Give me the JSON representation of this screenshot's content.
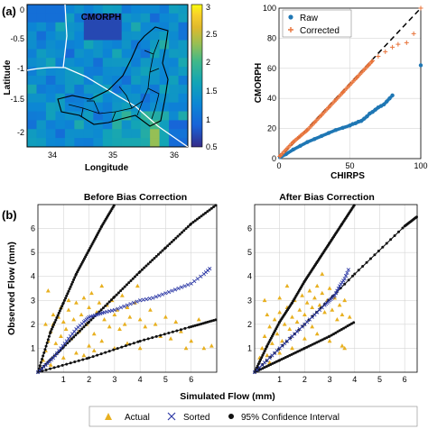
{
  "panel_labels": {
    "a": "(a)",
    "b": "(b)"
  },
  "colors": {
    "raw": "#1f77b4",
    "corrected": "#e8743b",
    "actual": "#e8b020",
    "sorted": "#2e3aa6",
    "ci": "#111111",
    "grid": "#d6d6d6"
  },
  "chart_data": [
    {
      "type": "heatmap",
      "title": "CMORPH",
      "xlabel": "Longitude",
      "ylabel": "Latitude",
      "xlim": [
        33.55,
        36.2
      ],
      "ylim": [
        -2.2,
        0.05
      ],
      "xticks": [
        "34",
        "35",
        "36"
      ],
      "yticks": [
        "0",
        "-0.5",
        "-1",
        "-1.5",
        "-2"
      ],
      "colorbar": {
        "range": [
          0.5,
          3
        ],
        "ticks": [
          "3",
          "2.5",
          "2",
          "1.5",
          "1",
          "0.5"
        ],
        "colormap": "parula"
      },
      "overlays": [
        "basin-boundary",
        "river-network",
        "region-boundary"
      ]
    },
    {
      "type": "scatter",
      "xlabel": "CHIRPS",
      "ylabel": "CMORPH",
      "xlim": [
        0,
        100
      ],
      "ylim": [
        0,
        100
      ],
      "xticks": [
        "0",
        "50",
        "100"
      ],
      "yticks": [
        "0",
        "20",
        "40",
        "60",
        "80",
        "100"
      ],
      "grid": true,
      "legend_position": "top-left",
      "series": [
        {
          "name": "Raw",
          "marker": "dot",
          "x": [
            1,
            5,
            10,
            15,
            20,
            25,
            30,
            35,
            40,
            45,
            50,
            52,
            54,
            56,
            58,
            60,
            62,
            64,
            66,
            68,
            70,
            72,
            74,
            76,
            78,
            80,
            100
          ],
          "y": [
            1,
            3,
            6,
            8.5,
            11,
            13,
            15,
            17,
            19,
            20.5,
            22,
            23,
            23.5,
            24.5,
            25,
            26.5,
            28,
            30,
            31,
            32.5,
            34,
            35,
            36,
            38,
            40,
            42,
            62
          ]
        },
        {
          "name": "Corrected",
          "marker": "plus",
          "x": [
            1,
            5,
            10,
            15,
            20,
            25,
            30,
            35,
            40,
            45,
            50,
            55,
            60,
            63,
            66,
            70,
            75,
            80,
            84,
            90,
            95,
            100
          ],
          "y": [
            2,
            6,
            11,
            15,
            19,
            24,
            29,
            34,
            39,
            44,
            49,
            54,
            59,
            62,
            65,
            68,
            71,
            74,
            76,
            77,
            83,
            100
          ]
        }
      ],
      "reference_line": {
        "style": "dashed",
        "from": [
          0,
          0
        ],
        "to": [
          100,
          100
        ]
      }
    },
    {
      "type": "scatter",
      "title": "Before Bias Correction",
      "xlabel": "",
      "ylabel": "Observed Flow (mm)",
      "xlim": [
        0,
        7
      ],
      "ylim": [
        0,
        7
      ],
      "xticks": [
        "1",
        "2",
        "3",
        "4",
        "5",
        "6"
      ],
      "yticks": [
        "1",
        "2",
        "3",
        "4",
        "5",
        "6"
      ],
      "grid": true,
      "series": [
        {
          "name": "Actual",
          "marker": "triangle",
          "points": [
            [
              0.1,
              0.2
            ],
            [
              0.2,
              0.5
            ],
            [
              0.3,
              0.9
            ],
            [
              0.4,
              1.3
            ],
            [
              0.5,
              1.7
            ],
            [
              0.6,
              2.0
            ],
            [
              0.7,
              1.2
            ],
            [
              0.8,
              2.3
            ],
            [
              0.9,
              1.5
            ],
            [
              1.0,
              2.1
            ],
            [
              1.1,
              1.8
            ],
            [
              1.2,
              2.6
            ],
            [
              1.3,
              1.4
            ],
            [
              1.4,
              2.2
            ],
            [
              1.5,
              2.9
            ],
            [
              1.6,
              1.7
            ],
            [
              1.7,
              2.4
            ],
            [
              1.8,
              3.1
            ],
            [
              1.9,
              2.0
            ],
            [
              2.0,
              2.7
            ],
            [
              2.1,
              3.3
            ],
            [
              2.2,
              1.6
            ],
            [
              2.3,
              2.5
            ],
            [
              2.4,
              2.9
            ],
            [
              2.5,
              3.6
            ],
            [
              2.6,
              2.2
            ],
            [
              2.7,
              2.8
            ],
            [
              2.8,
              1.9
            ],
            [
              2.9,
              3.0
            ],
            [
              3.0,
              2.4
            ],
            [
              3.1,
              2.6
            ],
            [
              3.2,
              1.8
            ],
            [
              3.3,
              3.2
            ],
            [
              3.4,
              2.0
            ],
            [
              3.5,
              2.7
            ],
            [
              3.6,
              2.3
            ],
            [
              3.8,
              2.9
            ],
            [
              4.0,
              2.2
            ],
            [
              4.2,
              1.9
            ],
            [
              4.4,
              2.6
            ],
            [
              4.6,
              2.0
            ],
            [
              4.8,
              1.5
            ],
            [
              5.0,
              2.3
            ],
            [
              5.2,
              1.4
            ],
            [
              5.4,
              2.1
            ],
            [
              5.6,
              1.7
            ],
            [
              5.8,
              1.0
            ],
            [
              6.0,
              1.3
            ],
            [
              6.3,
              2.2
            ],
            [
              6.5,
              1.0
            ],
            [
              6.8,
              1.1
            ],
            [
              1.5,
              0.8
            ],
            [
              2.0,
              1.1
            ],
            [
              2.5,
              1.3
            ],
            [
              3.0,
              1.0
            ],
            [
              3.5,
              1.2
            ],
            [
              4.0,
              1.0
            ],
            [
              1.0,
              0.6
            ],
            [
              0.5,
              0.3
            ],
            [
              2.2,
              0.9
            ],
            [
              1.8,
              0.7
            ],
            [
              0.3,
              2.0
            ],
            [
              0.6,
              2.4
            ],
            [
              0.9,
              2.7
            ],
            [
              1.2,
              3.0
            ],
            [
              0.4,
              3.4
            ],
            [
              3.9,
              3.6
            ]
          ]
        },
        {
          "name": "Sorted",
          "marker": "x",
          "x": [
            0.0,
            0.3,
            0.6,
            0.9,
            1.2,
            1.5,
            1.8,
            2.0,
            2.3,
            2.6,
            3.0,
            3.5,
            4.0,
            4.5,
            5.0,
            5.5,
            6.0,
            6.5,
            6.8
          ],
          "y": [
            0.0,
            0.3,
            0.6,
            1.0,
            1.4,
            1.8,
            2.1,
            2.3,
            2.4,
            2.5,
            2.6,
            2.8,
            3.0,
            3.1,
            3.3,
            3.5,
            3.7,
            4.1,
            4.4
          ]
        },
        {
          "name": "95% Confidence Interval",
          "marker": "dot-line",
          "lines": [
            {
              "x": [
                0,
                0.5,
                1,
                1.5,
                2,
                2.5,
                3
              ],
              "y": [
                0,
                1.7,
                2.9,
                4.1,
                5.1,
                6.1,
                7.0
              ]
            },
            {
              "x": [
                0,
                1,
                2,
                3,
                4,
                5,
                6,
                7
              ],
              "y": [
                0,
                1.05,
                2.1,
                3.15,
                4.2,
                5.2,
                6.2,
                7.0
              ]
            },
            {
              "x": [
                0,
                2,
                4,
                6,
                7
              ],
              "y": [
                0,
                0.6,
                1.3,
                1.9,
                2.2
              ]
            }
          ]
        }
      ]
    },
    {
      "type": "scatter",
      "title": "After Bias Correction",
      "xlabel": "",
      "ylabel": "",
      "xlim": [
        0,
        6.5
      ],
      "ylim": [
        0,
        7
      ],
      "xticks": [
        "1",
        "2",
        "3",
        "4",
        "5",
        "6"
      ],
      "yticks": [
        "1",
        "2",
        "3",
        "4",
        "5",
        "6"
      ],
      "grid": true,
      "series": [
        {
          "name": "Actual",
          "marker": "triangle",
          "points": [
            [
              0.1,
              0.2
            ],
            [
              0.2,
              0.6
            ],
            [
              0.3,
              1.0
            ],
            [
              0.4,
              1.5
            ],
            [
              0.5,
              0.7
            ],
            [
              0.6,
              1.9
            ],
            [
              0.7,
              1.2
            ],
            [
              0.8,
              2.2
            ],
            [
              0.9,
              1.6
            ],
            [
              1.0,
              2.5
            ],
            [
              1.1,
              1.3
            ],
            [
              1.2,
              2.0
            ],
            [
              1.3,
              2.7
            ],
            [
              1.4,
              1.8
            ],
            [
              1.5,
              2.3
            ],
            [
              1.6,
              3.0
            ],
            [
              1.7,
              2.1
            ],
            [
              1.8,
              2.6
            ],
            [
              1.9,
              3.2
            ],
            [
              2.0,
              2.4
            ],
            [
              2.1,
              2.9
            ],
            [
              2.2,
              3.4
            ],
            [
              2.3,
              2.7
            ],
            [
              2.4,
              3.1
            ],
            [
              2.5,
              3.6
            ],
            [
              2.6,
              2.8
            ],
            [
              2.7,
              3.3
            ],
            [
              2.8,
              2.5
            ],
            [
              2.9,
              3.0
            ],
            [
              3.0,
              3.5
            ],
            [
              3.1,
              2.6
            ],
            [
              3.2,
              3.1
            ],
            [
              3.3,
              2.2
            ],
            [
              3.4,
              2.8
            ],
            [
              3.5,
              2.4
            ],
            [
              3.6,
              3.0
            ],
            [
              3.8,
              2.3
            ],
            [
              1.5,
              1.0
            ],
            [
              2.0,
              1.4
            ],
            [
              2.5,
              1.6
            ],
            [
              3.0,
              1.3
            ],
            [
              3.5,
              1.1
            ],
            [
              3.6,
              1.0
            ],
            [
              1.0,
              0.8
            ],
            [
              0.6,
              0.4
            ],
            [
              2.3,
              1.9
            ],
            [
              0.5,
              2.4
            ],
            [
              1.0,
              3.1
            ],
            [
              1.3,
              3.6
            ],
            [
              0.4,
              3.0
            ],
            [
              2.7,
              4.1
            ]
          ]
        },
        {
          "name": "Sorted",
          "marker": "x",
          "x": [
            0.0,
            0.4,
            0.8,
            1.2,
            1.6,
            2.0,
            2.4,
            2.8,
            3.0,
            3.2,
            3.4,
            3.6,
            3.8
          ],
          "y": [
            0.0,
            0.4,
            0.8,
            1.2,
            1.6,
            2.0,
            2.4,
            2.8,
            3.0,
            3.2,
            3.6,
            3.9,
            4.4
          ]
        },
        {
          "name": "95% Confidence Interval",
          "marker": "dot-line",
          "lines": [
            {
              "x": [
                0,
                0.5,
                1,
                1.5,
                2,
                2.5,
                3,
                3.5,
                4
              ],
              "y": [
                0,
                1.1,
                2.1,
                2.9,
                3.8,
                4.6,
                5.4,
                6.2,
                7.0
              ]
            },
            {
              "x": [
                0,
                2,
                4,
                6,
                6.5
              ],
              "y": [
                0,
                2.0,
                4.1,
                6.1,
                6.5
              ]
            },
            {
              "x": [
                0,
                1,
                2,
                3,
                4
              ],
              "y": [
                0,
                0.5,
                1.0,
                1.5,
                2.1
              ]
            }
          ]
        }
      ]
    }
  ],
  "shared_xlabel": "Simulated Flow (mm)",
  "bottom_legend": [
    {
      "name": "Actual",
      "marker": "triangle"
    },
    {
      "name": "Sorted",
      "marker": "x"
    },
    {
      "name": "95% Confidence Interval",
      "marker": "dot"
    }
  ]
}
